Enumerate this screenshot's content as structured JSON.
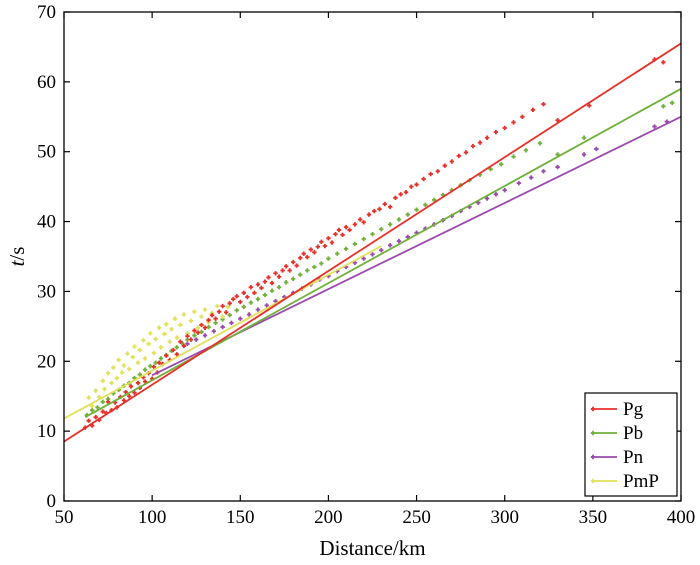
{
  "chart_data": {
    "type": "scatter",
    "title": "",
    "xlabel": "Distance/km",
    "ylabel_italic": "t",
    "ylabel_unit": "/s",
    "xlim": [
      50,
      400
    ],
    "ylim": [
      0,
      70
    ],
    "xticks": [
      50,
      100,
      150,
      200,
      250,
      300,
      350,
      400
    ],
    "yticks": [
      0,
      10,
      20,
      30,
      40,
      50,
      60,
      70
    ],
    "grid": false,
    "legend_position": "bottom-right",
    "series": [
      {
        "name": "Pg",
        "color": "#e8302a",
        "fit_line": {
          "x": [
            50,
            400
          ],
          "y": [
            8.5,
            65.5
          ]
        },
        "points": [
          [
            62,
            10.5
          ],
          [
            64,
            11.5
          ],
          [
            66,
            10.8
          ],
          [
            68,
            12.0
          ],
          [
            70,
            11.6
          ],
          [
            72,
            12.8
          ],
          [
            74,
            12.6
          ],
          [
            75,
            14.2
          ],
          [
            77,
            13.0
          ],
          [
            79,
            14.1
          ],
          [
            80,
            13.4
          ],
          [
            82,
            14.9
          ],
          [
            84,
            14.4
          ],
          [
            85,
            15.6
          ],
          [
            87,
            15.0
          ],
          [
            88,
            16.4
          ],
          [
            90,
            15.5
          ],
          [
            92,
            16.9
          ],
          [
            93,
            16.2
          ],
          [
            95,
            17.7
          ],
          [
            96,
            17.1
          ],
          [
            98,
            18.3
          ],
          [
            100,
            17.5
          ],
          [
            101,
            19.2
          ],
          [
            103,
            18.4
          ],
          [
            104,
            19.8
          ],
          [
            106,
            19.6
          ],
          [
            108,
            20.8
          ],
          [
            110,
            20.2
          ],
          [
            112,
            21.6
          ],
          [
            114,
            21.0
          ],
          [
            116,
            22.8
          ],
          [
            118,
            22.2
          ],
          [
            120,
            23.6
          ],
          [
            122,
            23.1
          ],
          [
            124,
            24.4
          ],
          [
            126,
            24.1
          ],
          [
            128,
            25.2
          ],
          [
            130,
            24.8
          ],
          [
            132,
            25.9
          ],
          [
            134,
            26.6
          ],
          [
            136,
            26.1
          ],
          [
            138,
            27.1
          ],
          [
            140,
            27.9
          ],
          [
            142,
            27.0
          ],
          [
            144,
            28.3
          ],
          [
            146,
            28.9
          ],
          [
            148,
            29.3
          ],
          [
            150,
            28.5
          ],
          [
            152,
            29.8
          ],
          [
            154,
            29.2
          ],
          [
            156,
            30.6
          ],
          [
            158,
            29.8
          ],
          [
            160,
            31.0
          ],
          [
            162,
            30.5
          ],
          [
            164,
            31.4
          ],
          [
            166,
            32.0
          ],
          [
            168,
            31.2
          ],
          [
            170,
            32.6
          ],
          [
            172,
            32.1
          ],
          [
            174,
            33.0
          ],
          [
            176,
            33.6
          ],
          [
            178,
            33.0
          ],
          [
            180,
            34.2
          ],
          [
            182,
            33.7
          ],
          [
            184,
            34.8
          ],
          [
            186,
            35.4
          ],
          [
            188,
            34.9
          ],
          [
            190,
            36.0
          ],
          [
            192,
            35.6
          ],
          [
            194,
            36.4
          ],
          [
            196,
            37.1
          ],
          [
            198,
            36.5
          ],
          [
            200,
            37.6
          ],
          [
            202,
            37.0
          ],
          [
            204,
            38.2
          ],
          [
            206,
            38.8
          ],
          [
            208,
            38.1
          ],
          [
            210,
            39.2
          ],
          [
            212,
            38.8
          ],
          [
            215,
            39.6
          ],
          [
            218,
            40.3
          ],
          [
            220,
            39.9
          ],
          [
            223,
            41.0
          ],
          [
            226,
            41.5
          ],
          [
            229,
            41.8
          ],
          [
            232,
            42.5
          ],
          [
            235,
            42.1
          ],
          [
            238,
            43.4
          ],
          [
            241,
            43.9
          ],
          [
            244,
            44.2
          ],
          [
            247,
            45.0
          ],
          [
            250,
            45.3
          ],
          [
            254,
            46.1
          ],
          [
            258,
            46.8
          ],
          [
            262,
            47.2
          ],
          [
            266,
            48.0
          ],
          [
            270,
            48.6
          ],
          [
            274,
            49.4
          ],
          [
            278,
            49.9
          ],
          [
            282,
            50.8
          ],
          [
            286,
            51.3
          ],
          [
            290,
            52.0
          ],
          [
            295,
            52.8
          ],
          [
            300,
            53.4
          ],
          [
            305,
            54.2
          ],
          [
            310,
            55.0
          ],
          [
            316,
            56.0
          ],
          [
            322,
            56.8
          ],
          [
            330,
            54.5
          ],
          [
            348,
            56.6
          ],
          [
            385,
            63.2
          ],
          [
            390,
            62.8
          ]
        ]
      },
      {
        "name": "Pb",
        "color": "#6fb03a",
        "fit_line": {
          "x": [
            62,
            400
          ],
          "y": [
            12.0,
            59.0
          ]
        },
        "points": [
          [
            63,
            12.3
          ],
          [
            66,
            13.0
          ],
          [
            69,
            13.4
          ],
          [
            72,
            14.2
          ],
          [
            75,
            14.6
          ],
          [
            78,
            15.4
          ],
          [
            81,
            15.9
          ],
          [
            84,
            16.5
          ],
          [
            87,
            16.9
          ],
          [
            90,
            17.6
          ],
          [
            93,
            18.1
          ],
          [
            96,
            18.8
          ],
          [
            99,
            19.3
          ],
          [
            102,
            19.8
          ],
          [
            105,
            20.4
          ],
          [
            108,
            20.9
          ],
          [
            111,
            21.5
          ],
          [
            114,
            22.0
          ],
          [
            117,
            22.6
          ],
          [
            120,
            23.1
          ],
          [
            124,
            23.7
          ],
          [
            128,
            24.2
          ],
          [
            132,
            24.9
          ],
          [
            136,
            25.5
          ],
          [
            140,
            26.0
          ],
          [
            144,
            26.6
          ],
          [
            148,
            27.3
          ],
          [
            152,
            27.8
          ],
          [
            156,
            28.4
          ],
          [
            160,
            28.9
          ],
          [
            164,
            29.5
          ],
          [
            168,
            30.1
          ],
          [
            172,
            30.6
          ],
          [
            176,
            31.3
          ],
          [
            180,
            31.8
          ],
          [
            184,
            32.4
          ],
          [
            188,
            33.0
          ],
          [
            192,
            33.5
          ],
          [
            196,
            34.0
          ],
          [
            200,
            34.7
          ],
          [
            205,
            35.4
          ],
          [
            210,
            36.1
          ],
          [
            215,
            36.8
          ],
          [
            220,
            37.5
          ],
          [
            225,
            38.2
          ],
          [
            230,
            38.9
          ],
          [
            235,
            39.6
          ],
          [
            240,
            40.3
          ],
          [
            245,
            41.0
          ],
          [
            250,
            41.7
          ],
          [
            255,
            42.4
          ],
          [
            260,
            43.1
          ],
          [
            265,
            43.8
          ],
          [
            270,
            44.5
          ],
          [
            275,
            45.2
          ],
          [
            280,
            45.9
          ],
          [
            286,
            46.7
          ],
          [
            292,
            47.5
          ],
          [
            298,
            48.2
          ],
          [
            305,
            49.3
          ],
          [
            312,
            50.2
          ],
          [
            320,
            51.2
          ],
          [
            330,
            49.6
          ],
          [
            345,
            52.0
          ],
          [
            390,
            56.5
          ],
          [
            395,
            57.0
          ]
        ]
      },
      {
        "name": "Pn",
        "color": "#9a4aad",
        "fit_line": {
          "x": [
            100,
            400
          ],
          "y": [
            18.0,
            55.0
          ]
        },
        "points": [
          [
            120,
            22.5
          ],
          [
            125,
            23.1
          ],
          [
            130,
            23.7
          ],
          [
            135,
            24.3
          ],
          [
            140,
            24.9
          ],
          [
            145,
            25.5
          ],
          [
            150,
            26.1
          ],
          [
            155,
            26.7
          ],
          [
            160,
            27.4
          ],
          [
            165,
            28.0
          ],
          [
            170,
            28.6
          ],
          [
            175,
            29.2
          ],
          [
            180,
            29.8
          ],
          [
            185,
            30.4
          ],
          [
            190,
            31.0
          ],
          [
            195,
            31.7
          ],
          [
            200,
            32.2
          ],
          [
            205,
            32.9
          ],
          [
            210,
            33.5
          ],
          [
            215,
            34.1
          ],
          [
            220,
            34.7
          ],
          [
            225,
            35.3
          ],
          [
            230,
            35.9
          ],
          [
            235,
            36.6
          ],
          [
            240,
            37.2
          ],
          [
            245,
            37.8
          ],
          [
            250,
            38.4
          ],
          [
            255,
            39.0
          ],
          [
            260,
            39.6
          ],
          [
            265,
            40.2
          ],
          [
            270,
            40.8
          ],
          [
            275,
            41.5
          ],
          [
            280,
            42.1
          ],
          [
            285,
            42.7
          ],
          [
            290,
            43.3
          ],
          [
            295,
            43.9
          ],
          [
            300,
            44.5
          ],
          [
            308,
            45.5
          ],
          [
            315,
            46.3
          ],
          [
            322,
            47.2
          ],
          [
            330,
            47.8
          ],
          [
            345,
            49.6
          ],
          [
            352,
            50.4
          ],
          [
            385,
            53.6
          ],
          [
            392,
            54.3
          ]
        ]
      },
      {
        "name": "PmP",
        "color": "#e0e15a",
        "fit_line": {
          "x": [
            50,
            230
          ],
          "y": [
            11.8,
            36.5
          ]
        },
        "points": [
          [
            64,
            14.8
          ],
          [
            66,
            13.6
          ],
          [
            68,
            15.8
          ],
          [
            70,
            14.9
          ],
          [
            72,
            17.2
          ],
          [
            73,
            16.0
          ],
          [
            75,
            18.3
          ],
          [
            77,
            16.9
          ],
          [
            78,
            19.1
          ],
          [
            80,
            17.6
          ],
          [
            81,
            20.2
          ],
          [
            83,
            18.4
          ],
          [
            84,
            19.4
          ],
          [
            86,
            21.1
          ],
          [
            87,
            18.9
          ],
          [
            89,
            20.6
          ],
          [
            90,
            22.1
          ],
          [
            92,
            19.8
          ],
          [
            93,
            21.6
          ],
          [
            95,
            23.0
          ],
          [
            96,
            20.4
          ],
          [
            98,
            22.5
          ],
          [
            99,
            24.0
          ],
          [
            101,
            21.2
          ],
          [
            102,
            23.2
          ],
          [
            104,
            24.8
          ],
          [
            105,
            22.0
          ],
          [
            107,
            23.9
          ],
          [
            108,
            25.3
          ],
          [
            110,
            22.8
          ],
          [
            111,
            24.6
          ],
          [
            113,
            26.1
          ],
          [
            114,
            23.4
          ],
          [
            116,
            25.2
          ],
          [
            118,
            26.7
          ],
          [
            120,
            24.0
          ],
          [
            122,
            25.8
          ],
          [
            124,
            27.1
          ],
          [
            126,
            24.8
          ],
          [
            128,
            26.4
          ],
          [
            130,
            27.4
          ],
          [
            132,
            25.6
          ],
          [
            134,
            26.9
          ],
          [
            137,
            27.9
          ],
          [
            140,
            26.4
          ],
          [
            143,
            27.8
          ]
        ]
      }
    ]
  }
}
